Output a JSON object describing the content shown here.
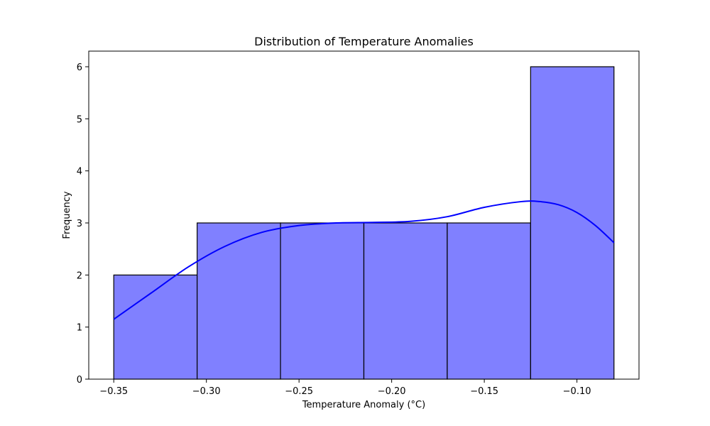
{
  "chart_data": {
    "type": "bar",
    "subtype": "histogram",
    "title": "Distribution of Temperature Anomalies",
    "xlabel": "Temperature Anomaly (°C)",
    "ylabel": "Frequency",
    "bins": [
      {
        "start": -0.35,
        "end": -0.305,
        "count": 2
      },
      {
        "start": -0.305,
        "end": -0.26,
        "count": 3
      },
      {
        "start": -0.26,
        "end": -0.215,
        "count": 3
      },
      {
        "start": -0.215,
        "end": -0.17,
        "count": 3
      },
      {
        "start": -0.17,
        "end": -0.125,
        "count": 3
      },
      {
        "start": -0.125,
        "end": -0.08,
        "count": 6
      }
    ],
    "kde": {
      "x": [
        -0.35,
        -0.33,
        -0.31,
        -0.29,
        -0.27,
        -0.25,
        -0.23,
        -0.21,
        -0.19,
        -0.17,
        -0.15,
        -0.13,
        -0.12,
        -0.11,
        -0.1,
        -0.09,
        -0.08
      ],
      "y": [
        1.15,
        1.65,
        2.15,
        2.55,
        2.82,
        2.95,
        3.0,
        3.01,
        3.03,
        3.12,
        3.3,
        3.41,
        3.41,
        3.35,
        3.2,
        2.95,
        2.62
      ]
    },
    "xlim": [
      -0.3635,
      -0.0665
    ],
    "ylim": [
      0,
      6.3
    ],
    "xticks": [
      -0.35,
      -0.3,
      -0.25,
      -0.2,
      -0.15,
      -0.1
    ],
    "xtick_labels": [
      "−0.35",
      "−0.30",
      "−0.25",
      "−0.20",
      "−0.15",
      "−0.10"
    ],
    "yticks": [
      0,
      1,
      2,
      3,
      4,
      5,
      6
    ],
    "ytick_labels": [
      "0",
      "1",
      "2",
      "3",
      "4",
      "5",
      "6"
    ],
    "grid": false,
    "colors": {
      "bar_fill": "#8080ff",
      "bar_edge": "#000000",
      "kde_line": "#0000ff"
    }
  }
}
